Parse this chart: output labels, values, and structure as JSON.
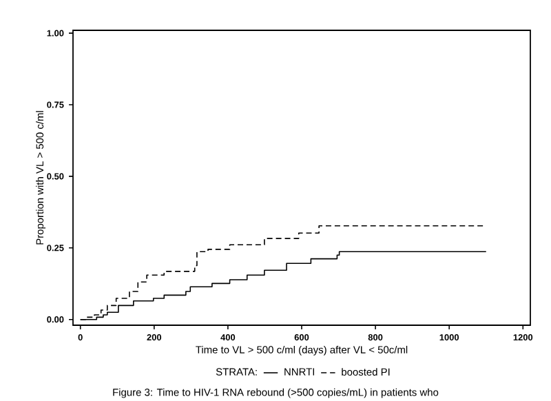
{
  "chart_data": {
    "type": "step",
    "xlabel": "Time to VL > 500 c/ml (days) after VL < 50c/ml",
    "ylabel": "Proportion with VL > 500 c/ml",
    "legend_title": "STRATA:",
    "legend": "bottom",
    "xlim": [
      -20,
      1220
    ],
    "ylim": [
      -0.02,
      1.01
    ],
    "xticks": [
      0,
      200,
      400,
      600,
      800,
      1000,
      1200
    ],
    "yticks": [
      {
        "value": 0,
        "label": "0.00"
      },
      {
        "value": 0.25,
        "label": "0.25"
      },
      {
        "value": 0.5,
        "label": "0.50"
      },
      {
        "value": 0.75,
        "label": "0.75"
      },
      {
        "value": 1,
        "label": "1.00"
      }
    ],
    "grid": false,
    "series": [
      {
        "name": "NNRTI",
        "color": "#000000",
        "line_style": "solid",
        "x": [
          0,
          44,
          62,
          73,
          103,
          144,
          198,
          227,
          286,
          298,
          357,
          405,
          452,
          499,
          559,
          625,
          696,
          702,
          1100
        ],
        "values": [
          0,
          0.008,
          0.016,
          0.025,
          0.049,
          0.065,
          0.074,
          0.085,
          0.098,
          0.114,
          0.126,
          0.139,
          0.155,
          0.172,
          0.196,
          0.212,
          0.225,
          0.237,
          0.237
        ]
      },
      {
        "name": "boosted PI",
        "color": "#000000",
        "line_style": "dashed",
        "x": [
          0,
          14,
          38,
          56,
          73,
          97,
          133,
          156,
          180,
          227,
          310,
          316,
          346,
          405,
          499,
          592,
          647,
          1100
        ],
        "values": [
          0,
          0.008,
          0.016,
          0.033,
          0.049,
          0.074,
          0.098,
          0.131,
          0.155,
          0.168,
          0.188,
          0.237,
          0.245,
          0.261,
          0.283,
          0.302,
          0.327,
          0.327
        ]
      }
    ],
    "annotations": [
      "Figure 3: Time to HIV-1 RNA rebound (>500 copies/mL) in patients who"
    ]
  }
}
